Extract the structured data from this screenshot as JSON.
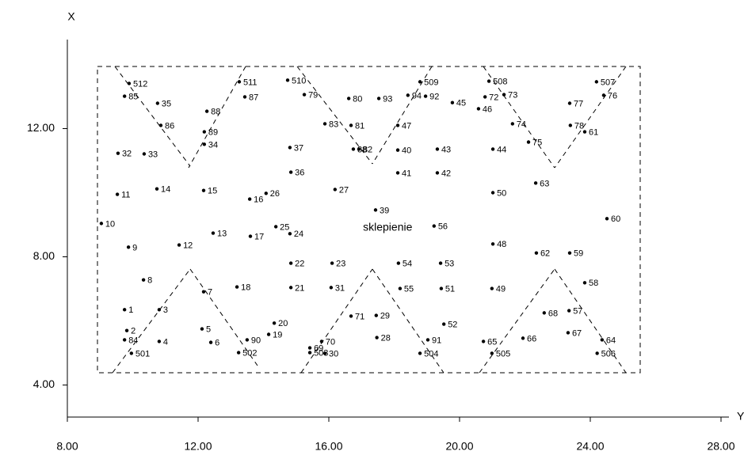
{
  "chart_data": {
    "type": "scatter",
    "xlabel": "Y",
    "ylabel": "X",
    "annotation": {
      "text": "sklepienie",
      "x": 17.8,
      "y": 8.91
    },
    "labels": [
      "512",
      "85",
      "35",
      "86",
      "88",
      "89",
      "34",
      "511",
      "87",
      "32",
      "33",
      "14",
      "15",
      "16",
      "26",
      "11",
      "10",
      "9",
      "13",
      "12",
      "17",
      "25",
      "24",
      "510",
      "79",
      "37",
      "36",
      "80",
      "93",
      "83",
      "81",
      "38",
      "82",
      "27",
      "39",
      "47",
      "40",
      "41",
      "509",
      "94",
      "92",
      "45",
      "43",
      "42",
      "56",
      "508",
      "72",
      "73",
      "46",
      "74",
      "44",
      "75",
      "63",
      "50",
      "507",
      "76",
      "77",
      "78",
      "61",
      "60",
      "48",
      "62",
      "59",
      "22",
      "23",
      "54",
      "53",
      "8",
      "7",
      "18",
      "21",
      "31",
      "55",
      "51",
      "49",
      "58",
      "1",
      "3",
      "68",
      "57",
      "71",
      "29",
      "20",
      "52",
      "2",
      "5",
      "19",
      "84",
      "4",
      "6",
      "90",
      "70",
      "28",
      "91",
      "65",
      "66",
      "67",
      "64",
      "69",
      "501",
      "502",
      "503",
      "30",
      "504",
      "505",
      "506"
    ],
    "x": [
      9.89,
      9.75,
      10.76,
      10.86,
      12.27,
      12.19,
      12.19,
      13.26,
      13.43,
      9.55,
      10.35,
      10.74,
      12.17,
      13.58,
      14.08,
      9.53,
      9.04,
      9.87,
      12.46,
      11.42,
      13.6,
      14.38,
      14.81,
      14.74,
      15.25,
      14.81,
      14.84,
      16.61,
      17.53,
      15.88,
      16.68,
      16.75,
      16.92,
      16.19,
      17.43,
      18.11,
      18.11,
      18.11,
      18.79,
      18.42,
      18.96,
      19.78,
      19.32,
      19.32,
      19.22,
      20.9,
      20.78,
      21.36,
      20.58,
      21.62,
      21.02,
      22.11,
      22.33,
      21.02,
      24.19,
      24.41,
      23.37,
      23.39,
      23.83,
      24.51,
      21.02,
      22.35,
      23.37,
      14.84,
      16.1,
      18.13,
      19.42,
      10.33,
      12.17,
      13.19,
      14.84,
      16.07,
      18.18,
      19.44,
      20.99,
      23.83,
      9.75,
      10.81,
      22.59,
      23.35,
      16.68,
      17.45,
      14.33,
      19.52,
      9.82,
      12.12,
      14.16,
      9.75,
      10.81,
      12.39,
      13.5,
      15.78,
      17.47,
      19.03,
      20.73,
      21.94,
      23.32,
      24.36,
      15.42,
      9.96,
      13.24,
      15.42,
      15.88,
      18.79,
      20.99,
      24.21
    ],
    "y": [
      13.41,
      13.01,
      12.79,
      12.1,
      12.54,
      11.9,
      11.51,
      13.46,
      12.99,
      11.23,
      11.21,
      10.12,
      10.07,
      9.8,
      9.98,
      9.95,
      9.04,
      8.3,
      8.74,
      8.37,
      8.64,
      8.94,
      8.72,
      13.51,
      13.06,
      11.41,
      10.64,
      12.94,
      12.94,
      12.15,
      12.1,
      11.36,
      11.36,
      10.1,
      9.46,
      12.1,
      11.33,
      10.62,
      13.46,
      13.04,
      13.01,
      12.81,
      11.36,
      10.62,
      8.96,
      13.48,
      12.99,
      13.06,
      12.62,
      12.15,
      11.36,
      11.58,
      10.3,
      10.0,
      13.46,
      13.04,
      12.79,
      12.1,
      11.9,
      9.19,
      8.4,
      8.12,
      8.12,
      7.8,
      7.8,
      7.8,
      7.8,
      7.28,
      6.91,
      7.06,
      7.04,
      7.04,
      7.01,
      7.01,
      7.01,
      7.19,
      6.35,
      6.35,
      6.25,
      6.32,
      6.15,
      6.17,
      5.93,
      5.9,
      5.7,
      5.75,
      5.58,
      5.41,
      5.36,
      5.33,
      5.41,
      5.36,
      5.48,
      5.41,
      5.36,
      5.46,
      5.63,
      5.41,
      5.16,
      4.99,
      5.01,
      5.01,
      4.99,
      4.99,
      4.99,
      4.99
    ],
    "xlim": [
      8,
      28.3
    ],
    "ylim": [
      3,
      14.8
    ],
    "xticks": [
      {
        "value": 8,
        "label": "8.00"
      },
      {
        "value": 12,
        "label": "12.00"
      },
      {
        "value": 16,
        "label": "16.00"
      },
      {
        "value": 20,
        "label": "20.00"
      },
      {
        "value": 24,
        "label": "24.00"
      },
      {
        "value": 28,
        "label": "28.00"
      }
    ],
    "yticks": [
      {
        "value": 4,
        "label": "4.00"
      },
      {
        "value": 8,
        "label": "8.00"
      },
      {
        "value": 12,
        "label": "12.00"
      }
    ],
    "color": "#000000"
  }
}
